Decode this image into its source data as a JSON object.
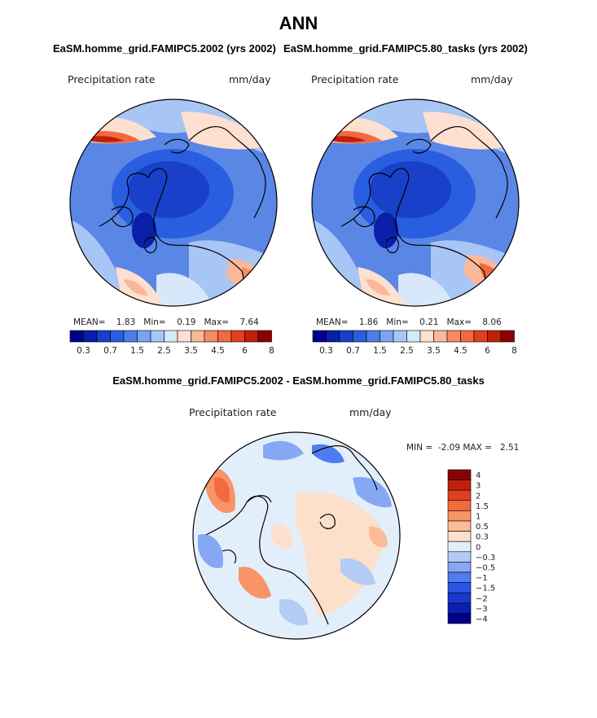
{
  "main_title": "ANN",
  "panel1": {
    "title": "EaSM.homme_grid.FAMIPC5.2002 (yrs 2002)",
    "var_label": "Precipitation rate",
    "units": "mm/day",
    "stats": {
      "mean_label": "MEAN=",
      "mean": "1.83",
      "min_label": "Min=",
      "min": "0.19",
      "max_label": "Max=",
      "max": "7.64"
    }
  },
  "panel2": {
    "title": "EaSM.homme_grid.FAMIPC5.80_tasks (yrs 2002)",
    "var_label": "Precipitation rate",
    "units": "mm/day",
    "stats": {
      "mean_label": "MEAN=",
      "mean": "1.86",
      "min_label": "Min=",
      "min": "0.21",
      "max_label": "Max=",
      "max": "8.06"
    }
  },
  "panel3": {
    "title": "EaSM.homme_grid.FAMIPC5.2002 - EaSM.homme_grid.FAMIPC5.80_tasks",
    "var_label": "Precipitation rate",
    "units": "mm/day",
    "stats": {
      "min_label": "MIN =",
      "min": "-2.09",
      "max_label": "MAX =",
      "max": "2.51"
    }
  },
  "colorbar_abs": {
    "colors": [
      "#00008b",
      "#0a1fa8",
      "#1840c8",
      "#2a5ee0",
      "#4a7ee8",
      "#7aa4f0",
      "#a8c6f5",
      "#d8e8fb",
      "#fde0d0",
      "#fbb898",
      "#f78a62",
      "#f06a3e",
      "#e0401e",
      "#c02008",
      "#8b0000"
    ],
    "tick_labels": [
      "0.3",
      "0.7",
      "1.5",
      "2.5",
      "3.5",
      "4.5",
      "6",
      "8"
    ]
  },
  "colorbar_diff": {
    "colors": [
      "#00008b",
      "#0c20b0",
      "#1838d0",
      "#2a55e6",
      "#4f7cf0",
      "#86a8f4",
      "#b4cbf6",
      "#e3eefb",
      "#fde0cc",
      "#fbbc98",
      "#f89468",
      "#f26a3e",
      "#e0401e",
      "#c02010",
      "#8b0000"
    ],
    "tick_labels": [
      "4",
      "3",
      "2",
      "1.5",
      "1",
      "0.5",
      "0.3",
      "0",
      "−0.3",
      "−0.5",
      "−1",
      "−1.5",
      "−2",
      "−3",
      "−4"
    ]
  },
  "chart_data": [
    {
      "type": "heatmap",
      "title": "EaSM.homme_grid.FAMIPC5.2002 (yrs 2002)",
      "variable": "Precipitation rate",
      "units": "mm/day",
      "mean": 1.83,
      "min": 0.19,
      "max": 7.64,
      "levels": [
        0.3,
        0.7,
        1.5,
        2.5,
        3.5,
        4.5,
        6,
        8
      ]
    },
    {
      "type": "heatmap",
      "title": "EaSM.homme_grid.FAMIPC5.80_tasks (yrs 2002)",
      "variable": "Precipitation rate",
      "units": "mm/day",
      "mean": 1.86,
      "min": 0.21,
      "max": 8.06,
      "levels": [
        0.3,
        0.7,
        1.5,
        2.5,
        3.5,
        4.5,
        6,
        8
      ]
    },
    {
      "type": "heatmap",
      "title": "EaSM.homme_grid.FAMIPC5.2002 - EaSM.homme_grid.FAMIPC5.80_tasks",
      "variable": "Precipitation rate",
      "units": "mm/day",
      "min": -2.09,
      "max": 2.51,
      "levels": [
        -4,
        -3,
        -2,
        -1.5,
        -1,
        -0.5,
        -0.3,
        0,
        0.3,
        0.5,
        1,
        1.5,
        2,
        3,
        4
      ]
    }
  ]
}
